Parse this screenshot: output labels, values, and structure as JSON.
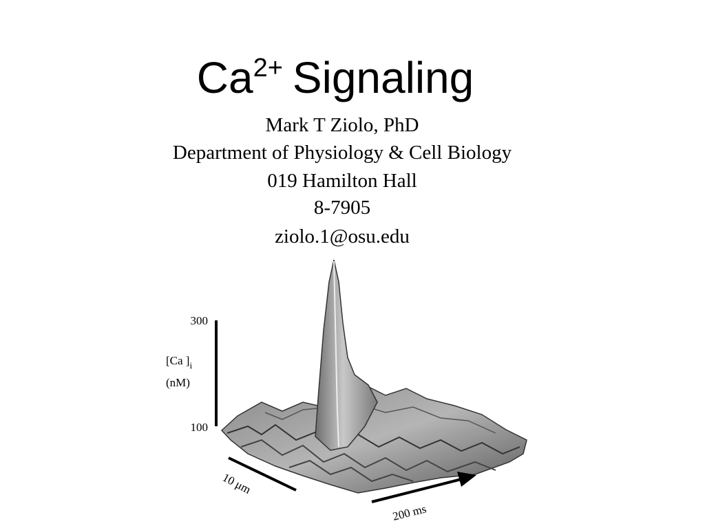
{
  "title": {
    "main": "Ca",
    "superscript": "2+",
    "rest": "Signaling"
  },
  "author": {
    "name": "Mark T Ziolo, PhD",
    "department": "Department of Physiology & Cell Biology",
    "office": "019 Hamilton Hall",
    "phone": "8-7905",
    "email": "ziolo.1@osu.edu"
  },
  "figure": {
    "y_top": "300",
    "y_bottom": "100",
    "y_label": "[Ca ]",
    "y_label_sub": "i",
    "y_unit": "(nM)",
    "space_scale": "10  μm",
    "time_scale": "200  ms"
  }
}
